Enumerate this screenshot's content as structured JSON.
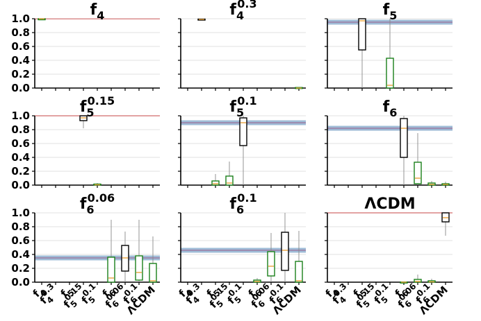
{
  "chart_data": {
    "type": "boxplot",
    "layout": "3x3 grid",
    "categories": [
      {
        "base": "f",
        "sub": "4",
        "sup": ""
      },
      {
        "base": "f",
        "sub": "4",
        "sup": "0.3"
      },
      {
        "base": "f",
        "sub": "5",
        "sup": ""
      },
      {
        "base": "f",
        "sub": "5",
        "sup": "0.15"
      },
      {
        "base": "f",
        "sub": "5",
        "sup": "0.1"
      },
      {
        "base": "f",
        "sub": "6",
        "sup": ""
      },
      {
        "base": "f",
        "sub": "6",
        "sup": "0.06"
      },
      {
        "base": "f",
        "sub": "6",
        "sup": "0.1"
      },
      {
        "base": "ΛCDM",
        "sub": "",
        "sup": ""
      }
    ],
    "y_ticks": [
      "0.0",
      "0.2",
      "0.4",
      "0.6",
      "0.8",
      "1.0"
    ],
    "ylim": [
      0,
      1
    ],
    "grid": true,
    "colors": {
      "box_self": "#000000",
      "box_other": "#1a7f1a",
      "band_blue": "#7fa6c9",
      "line_red": "#d26a6a"
    },
    "panels": [
      {
        "title": {
          "base": "f",
          "sub": "4",
          "sup": ""
        },
        "reference": 0.998,
        "band": null,
        "boxes": [
          {
            "cat": 0,
            "q1": 0.995,
            "median": 0.998,
            "q3": 1.0,
            "low": 0.99,
            "high": 1.0,
            "color": "#1a7f1a"
          }
        ]
      },
      {
        "title": {
          "base": "f",
          "sub": "4",
          "sup": "0.3"
        },
        "reference": null,
        "band": null,
        "boxes": [
          {
            "cat": 1,
            "q1": 0.985,
            "median": 0.99,
            "q3": 0.995,
            "low": 0.98,
            "high": 1.0,
            "color": "#000000"
          },
          {
            "cat": 8,
            "q1": 0.0,
            "median": 0.0,
            "q3": 0.008,
            "low": 0.0,
            "high": 0.01,
            "color": "#1a7f1a"
          }
        ]
      },
      {
        "title": {
          "base": "f",
          "sub": "5",
          "sup": ""
        },
        "reference": null,
        "band": 0.95,
        "boxes": [
          {
            "cat": 2,
            "q1": 0.55,
            "median": 0.97,
            "q3": 1.0,
            "low": 0.0,
            "high": 1.0,
            "color": "#000000"
          },
          {
            "cat": 4,
            "q1": 0.0,
            "median": 0.04,
            "q3": 0.43,
            "low": 0.0,
            "high": 1.0,
            "color": "#1a7f1a"
          }
        ]
      },
      {
        "title": {
          "base": "f",
          "sub": "5",
          "sup": "0.15"
        },
        "reference": 1.0,
        "band": null,
        "boxes": [
          {
            "cat": 3,
            "q1": 0.93,
            "median": 0.97,
            "q3": 1.0,
            "low": 0.82,
            "high": 1.0,
            "color": "#000000"
          },
          {
            "cat": 4,
            "q1": 0.0,
            "median": 0.005,
            "q3": 0.015,
            "low": 0.0,
            "high": 0.03,
            "color": "#1a7f1a"
          }
        ]
      },
      {
        "title": {
          "base": "f",
          "sub": "5",
          "sup": "0.1"
        },
        "reference": null,
        "band": 0.9,
        "boxes": [
          {
            "cat": 2,
            "q1": 0.0,
            "median": 0.02,
            "q3": 0.06,
            "low": 0.0,
            "high": 0.16,
            "color": "#1a7f1a"
          },
          {
            "cat": 3,
            "q1": 0.0,
            "median": 0.03,
            "q3": 0.13,
            "low": 0.0,
            "high": 0.34,
            "color": "#1a7f1a"
          },
          {
            "cat": 4,
            "q1": 0.57,
            "median": 0.9,
            "q3": 0.97,
            "low": 0.0,
            "high": 1.0,
            "color": "#000000"
          }
        ]
      },
      {
        "title": {
          "base": "f",
          "sub": "6",
          "sup": ""
        },
        "reference": null,
        "band": 0.82,
        "boxes": [
          {
            "cat": 5,
            "q1": 0.4,
            "median": 0.82,
            "q3": 0.96,
            "low": 0.0,
            "high": 1.0,
            "color": "#000000"
          },
          {
            "cat": 6,
            "q1": 0.02,
            "median": 0.1,
            "q3": 0.33,
            "low": 0.0,
            "high": 0.75,
            "color": "#1a7f1a"
          },
          {
            "cat": 7,
            "q1": 0.0,
            "median": 0.01,
            "q3": 0.03,
            "low": 0.0,
            "high": 0.06,
            "color": "#1a7f1a"
          },
          {
            "cat": 8,
            "q1": 0.0,
            "median": 0.01,
            "q3": 0.02,
            "low": 0.0,
            "high": 0.05,
            "color": "#1a7f1a"
          }
        ]
      },
      {
        "title": {
          "base": "f",
          "sub": "6",
          "sup": "0.06"
        },
        "reference": null,
        "band": 0.35,
        "boxes": [
          {
            "cat": 5,
            "q1": 0.0,
            "median": 0.06,
            "q3": 0.36,
            "low": 0.0,
            "high": 0.9,
            "color": "#1a7f1a"
          },
          {
            "cat": 6,
            "q1": 0.16,
            "median": 0.35,
            "q3": 0.53,
            "low": 0.0,
            "high": 0.73,
            "color": "#000000"
          },
          {
            "cat": 7,
            "q1": 0.03,
            "median": 0.14,
            "q3": 0.38,
            "low": 0.0,
            "high": 0.9,
            "color": "#1a7f1a"
          },
          {
            "cat": 8,
            "q1": 0.0,
            "median": 0.02,
            "q3": 0.27,
            "low": 0.0,
            "high": 0.66,
            "color": "#1a7f1a"
          }
        ]
      },
      {
        "title": {
          "base": "f",
          "sub": "6",
          "sup": "0.1"
        },
        "reference": null,
        "band": 0.46,
        "boxes": [
          {
            "cat": 5,
            "q1": 0.0,
            "median": 0.01,
            "q3": 0.03,
            "low": 0.0,
            "high": 0.06,
            "color": "#1a7f1a"
          },
          {
            "cat": 6,
            "q1": 0.09,
            "median": 0.23,
            "q3": 0.44,
            "low": 0.0,
            "high": 0.71,
            "color": "#1a7f1a"
          },
          {
            "cat": 7,
            "q1": 0.17,
            "median": 0.46,
            "q3": 0.72,
            "low": 0.0,
            "high": 1.0,
            "color": "#000000"
          },
          {
            "cat": 8,
            "q1": 0.0,
            "median": 0.02,
            "q3": 0.3,
            "low": 0.0,
            "high": 0.74,
            "color": "#1a7f1a"
          }
        ]
      },
      {
        "title": {
          "base": "ΛCDM",
          "sub": "",
          "sup": ""
        },
        "reference": 1.0,
        "band": null,
        "boxes": [
          {
            "cat": 5,
            "q1": 0.0,
            "median": 0.0,
            "q3": 0.003,
            "low": 0.0,
            "high": 0.01,
            "color": "#1a7f1a"
          },
          {
            "cat": 6,
            "q1": 0.0,
            "median": 0.01,
            "q3": 0.04,
            "low": 0.0,
            "high": 0.11,
            "color": "#1a7f1a"
          },
          {
            "cat": 7,
            "q1": 0.0,
            "median": 0.005,
            "q3": 0.02,
            "low": 0.0,
            "high": 0.05,
            "color": "#1a7f1a"
          },
          {
            "cat": 8,
            "q1": 0.87,
            "median": 0.93,
            "q3": 1.0,
            "low": 0.67,
            "high": 1.0,
            "color": "#000000"
          }
        ]
      }
    ]
  }
}
